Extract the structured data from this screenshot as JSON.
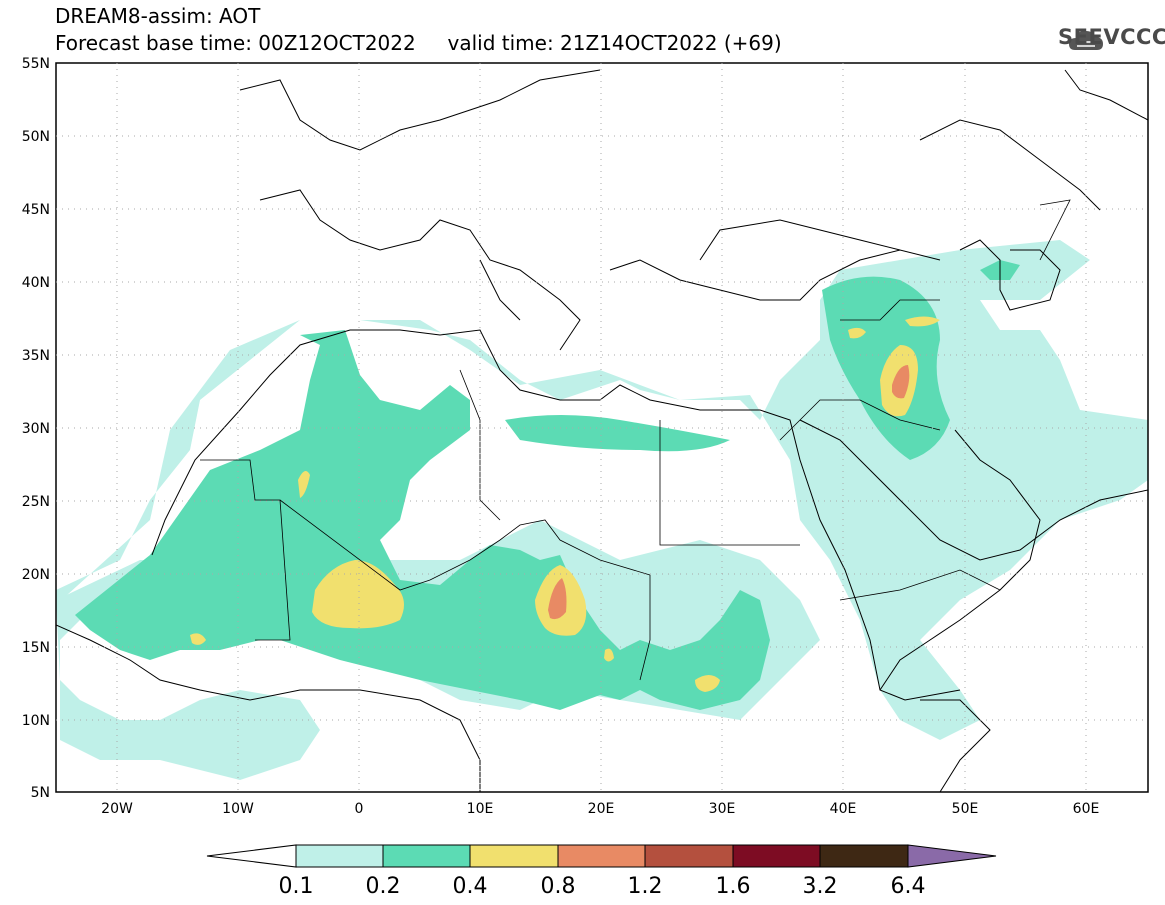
{
  "header": {
    "line1": "DREAM8-assim: AOT",
    "line2": "Forecast base time: 00Z12OCT2022     valid time: 21Z14OCT2022 (+69)"
  },
  "logo": {
    "text": "SEEVCCC",
    "icon": "cloud-icon"
  },
  "map": {
    "lon_range": [
      -25,
      65
    ],
    "lat_range": [
      5,
      55
    ],
    "lat_ticks": [
      "55N",
      "50N",
      "45N",
      "40N",
      "35N",
      "30N",
      "25N",
      "20N",
      "15N",
      "10N",
      "5N"
    ],
    "lon_ticks": [
      "20W",
      "10W",
      "0",
      "10E",
      "20E",
      "30E",
      "40E",
      "50E",
      "60E"
    ],
    "grid": "dotted"
  },
  "colorbar": {
    "labels": [
      "0.1",
      "0.2",
      "0.4",
      "0.8",
      "1.2",
      "1.6",
      "3.2",
      "6.4"
    ],
    "colors": [
      "#ffffff",
      "#bff0e8",
      "#5cdbb4",
      "#f1e06e",
      "#e88a64",
      "#b4503e",
      "#7d0c23",
      "#3e2814",
      "#8a6aa8"
    ]
  }
}
